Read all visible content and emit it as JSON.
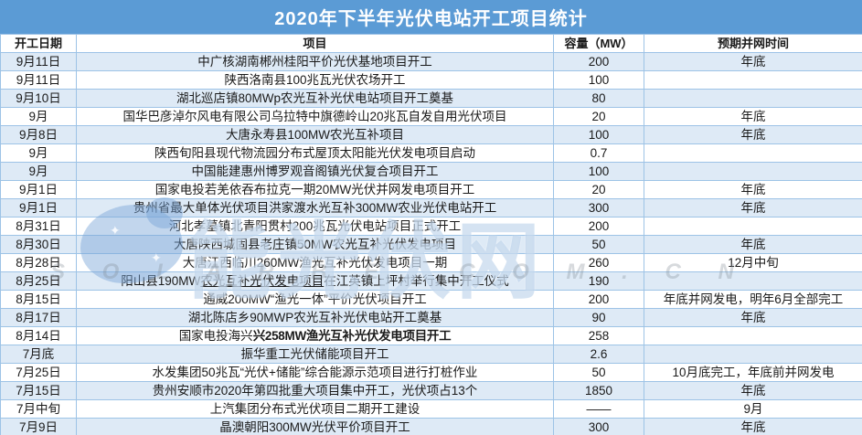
{
  "title": "2020年下半年光伏电站开工项目统计",
  "colors": {
    "title_bg": "#5B9BD5",
    "title_text": "#FFFFFF",
    "row_alt_bg": "#DEEAF6",
    "row_bg": "#FFFFFF",
    "border": "#9DC3E6",
    "body_text": "#1A1A1A"
  },
  "watermark": {
    "text": "能光伏网",
    "letters": "S O L A R B E . C O M . C N",
    "star": "✦"
  },
  "chart_data": {
    "type": "table",
    "columns": [
      "开工日期",
      "项目",
      "容量（MW）",
      "预期并网时间"
    ],
    "rows": [
      {
        "date": "9月11日",
        "project": [
          {
            "text": "中广核湖南郴州桂阳平价光伏基地项目开工",
            "style": "normal"
          }
        ],
        "capacity": "200",
        "expected": "年底"
      },
      {
        "date": "9月11日",
        "project": [
          {
            "text": "陕西洛南县100兆瓦光伏农场开工",
            "style": "normal"
          }
        ],
        "capacity": "100",
        "expected": ""
      },
      {
        "date": "9月10日",
        "project": [
          {
            "text": "湖北巡店镇80MWp农光互补光伏电站项目开工奠基",
            "style": "normal"
          }
        ],
        "capacity": "80",
        "expected": ""
      },
      {
        "date": "9月",
        "project": [
          {
            "text": "国华巴彦淖尔风电有限公司乌拉特中旗德岭山20兆瓦自发自用光伏项目",
            "style": "normal"
          }
        ],
        "capacity": "20",
        "expected": "年底"
      },
      {
        "date": "9月8日",
        "project": [
          {
            "text": "大唐永寿县100MW农光互补项目",
            "style": "normal"
          }
        ],
        "capacity": "100",
        "expected": "年底"
      },
      {
        "date": "9月",
        "project": [
          {
            "text": "陕西旬阳县现代物流园分布式屋顶太阳能光伏发电项目启动",
            "style": "normal"
          }
        ],
        "capacity": "0.7",
        "expected": ""
      },
      {
        "date": "9月",
        "project": [
          {
            "text": "中国能建惠州博罗观音阁镇光伏复合项目开工",
            "style": "normal"
          }
        ],
        "capacity": "100",
        "expected": ""
      },
      {
        "date": "9月1日",
        "project": [
          {
            "text": "国家电投若羌依吞布拉克一期20MW光伏并网发电项目开工",
            "style": "normal"
          }
        ],
        "capacity": "20",
        "expected": "年底"
      },
      {
        "date": "9月1日",
        "project": [
          {
            "text": "贵州省最大单体光伏项目洪家渡水光互补300MW农业光伏电站开工",
            "style": "normal"
          }
        ],
        "capacity": "300",
        "expected": "年底"
      },
      {
        "date": "8月31日",
        "project": [
          {
            "text": "河北孝墓镇北青阳贯村200兆瓦光伏电站项目正式开工",
            "style": "normal"
          }
        ],
        "capacity": "200",
        "expected": ""
      },
      {
        "date": "8月30日",
        "project": [
          {
            "text": "大唐陕西城固县老庄镇50MW农光互补光伏发电项目",
            "style": "normal"
          }
        ],
        "capacity": "50",
        "expected": "年底"
      },
      {
        "date": "8月28日",
        "project": [
          {
            "text": "大唐江西临川260MW渔光互补光伏发电项目一期",
            "style": "normal"
          }
        ],
        "capacity": "260",
        "expected": "12月中旬"
      },
      {
        "date": "8月25日",
        "project": [
          {
            "text": "阳山县190MW",
            "style": "normal"
          },
          {
            "text": "农光互补光伏发电项目",
            "style": "link"
          },
          {
            "text": "在江英镇上坪村举行集中开工仪式",
            "style": "normal"
          }
        ],
        "capacity": "190",
        "expected": ""
      },
      {
        "date": "8月15日",
        "project": [
          {
            "text": "通威200MW“渔光一体”平价光伏项目开工",
            "style": "normal"
          }
        ],
        "capacity": "200",
        "expected": "年底并网发电，明年6月全部完工"
      },
      {
        "date": "8月17日",
        "project": [
          {
            "text": "湖北陈店乡90MWP农光互补光伏电站开工奠基",
            "style": "normal"
          }
        ],
        "capacity": "90",
        "expected": "年底"
      },
      {
        "date": "8月14日",
        "project": [
          {
            "text": "国家电投海兴",
            "style": "normal"
          },
          {
            "text": "兴258MW渔光互补光伏发电项目开工",
            "style": "bold"
          }
        ],
        "capacity": "258",
        "expected": ""
      },
      {
        "date": "7月底",
        "project": [
          {
            "text": "振华重工光伏储能项目开工",
            "style": "normal"
          }
        ],
        "capacity": "2.6",
        "expected": ""
      },
      {
        "date": "7月25日",
        "project": [
          {
            "text": "水发集团50兆瓦“光伏+储能”综合能源示范项目进行打桩作业",
            "style": "normal"
          }
        ],
        "capacity": "50",
        "expected": "10月底完工，年底前并网发电"
      },
      {
        "date": "7月15日",
        "project": [
          {
            "text": "贵州安顺市2020年第四批重大项目集中开工，光伏项占13个",
            "style": "normal"
          }
        ],
        "capacity": "1850",
        "expected": "年底"
      },
      {
        "date": "7月中旬",
        "project": [
          {
            "text": "上汽集团分布式光伏项目二期开工建设",
            "style": "normal"
          }
        ],
        "capacity": "——",
        "expected": "9月"
      },
      {
        "date": "7月9日",
        "project": [
          {
            "text": "晶澳朝阳300MW光伏平价项目开工",
            "style": "normal"
          }
        ],
        "capacity": "300",
        "expected": "年底"
      },
      {
        "date": "6月30日",
        "project": [
          {
            "text": "榆能新能源300兆瓦光伏平价项目开工",
            "style": "normal"
          }
        ],
        "capacity": "300",
        "expected": "年底"
      }
    ]
  }
}
